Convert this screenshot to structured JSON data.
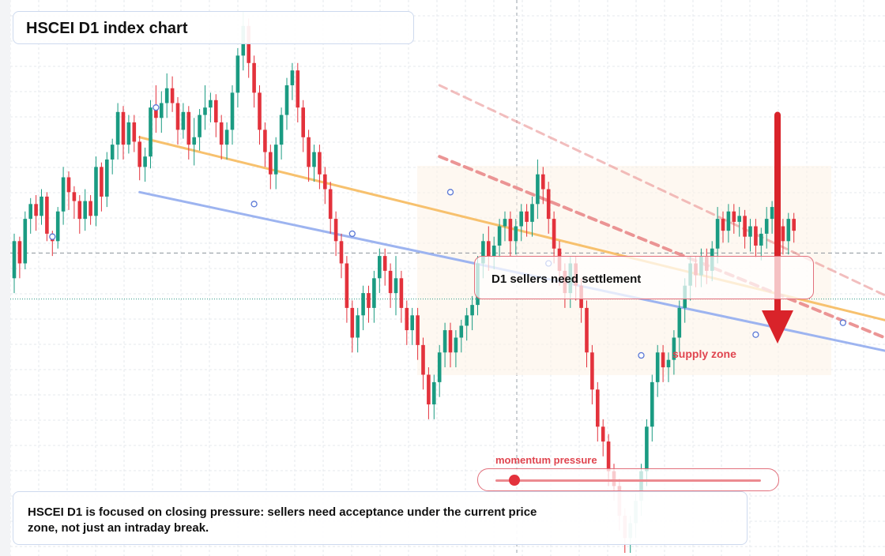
{
  "title": "HSCEI D1 index chart",
  "callout": "D1 sellers need settlement",
  "supply_label": "supply zone",
  "momentum": {
    "label": "momentum pressure",
    "level": 0.07
  },
  "note": "HSCEI D1 is focused on closing pressure: sellers need acceptance under the current price zone, not just an intraday break.",
  "colors": {
    "up": "#1a9b82",
    "down": "#e3323c",
    "trend_orange": "#f7c16e",
    "trend_blue": "#9db4f0",
    "resistance": "#e98a8a",
    "arrow": "#d9232a",
    "marker": "#5a78d6"
  },
  "chart_data": {
    "type": "candlestick",
    "title": "HSCEI D1 index chart",
    "grid": true,
    "y_scale": "price (no axis labels shown)",
    "ohlc": [
      [
        430,
        455,
        425,
        460,
        420
      ],
      [
        455,
        440,
        435,
        458,
        430
      ],
      [
        440,
        470,
        438,
        475,
        436
      ],
      [
        470,
        480,
        465,
        484,
        460
      ],
      [
        480,
        472,
        468,
        486,
        462
      ],
      [
        472,
        485,
        470,
        490,
        466
      ],
      [
        485,
        460,
        458,
        488,
        455
      ],
      [
        460,
        455,
        448,
        462,
        445
      ],
      [
        455,
        475,
        452,
        478,
        450
      ],
      [
        475,
        498,
        470,
        505,
        466
      ],
      [
        498,
        488,
        480,
        502,
        476
      ],
      [
        488,
        482,
        475,
        492,
        470
      ],
      [
        482,
        470,
        465,
        486,
        460
      ],
      [
        470,
        482,
        466,
        490,
        462
      ],
      [
        482,
        472,
        470,
        486,
        466
      ],
      [
        472,
        505,
        468,
        512,
        465
      ],
      [
        505,
        485,
        480,
        508,
        475
      ],
      [
        485,
        510,
        482,
        515,
        478
      ],
      [
        510,
        520,
        505,
        524,
        500
      ],
      [
        520,
        542,
        515,
        548,
        510
      ],
      [
        542,
        520,
        515,
        546,
        510
      ],
      [
        520,
        535,
        518,
        540,
        514
      ],
      [
        535,
        522,
        520,
        540,
        515
      ],
      [
        522,
        505,
        500,
        526,
        496
      ],
      [
        505,
        512,
        500,
        518,
        495
      ],
      [
        512,
        545,
        508,
        550,
        504
      ],
      [
        545,
        538,
        532,
        560,
        528
      ],
      [
        538,
        548,
        532,
        556,
        528
      ],
      [
        548,
        558,
        542,
        568,
        538
      ],
      [
        558,
        548,
        545,
        566,
        542
      ],
      [
        548,
        530,
        525,
        552,
        520
      ],
      [
        530,
        542,
        528,
        548,
        524
      ],
      [
        542,
        520,
        515,
        546,
        510
      ],
      [
        520,
        525,
        515,
        538,
        506
      ],
      [
        525,
        540,
        520,
        544,
        516
      ],
      [
        540,
        545,
        535,
        560,
        530
      ],
      [
        545,
        550,
        540,
        555,
        535
      ],
      [
        550,
        535,
        530,
        554,
        525
      ],
      [
        535,
        520,
        515,
        540,
        510
      ],
      [
        520,
        530,
        515,
        535,
        510
      ],
      [
        530,
        555,
        525,
        560,
        520
      ],
      [
        555,
        580,
        550,
        585,
        545
      ],
      [
        580,
        600,
        575,
        610,
        570
      ],
      [
        600,
        575,
        570,
        605,
        565
      ],
      [
        575,
        555,
        550,
        580,
        545
      ],
      [
        555,
        530,
        525,
        560,
        520
      ],
      [
        530,
        515,
        510,
        535,
        505
      ],
      [
        515,
        500,
        495,
        520,
        490
      ],
      [
        500,
        520,
        495,
        525,
        490
      ],
      [
        520,
        540,
        515,
        545,
        510
      ],
      [
        540,
        560,
        535,
        565,
        530
      ],
      [
        560,
        570,
        555,
        575,
        550
      ],
      [
        570,
        545,
        540,
        575,
        535
      ],
      [
        545,
        525,
        520,
        550,
        515
      ],
      [
        525,
        505,
        500,
        530,
        495
      ],
      [
        505,
        515,
        500,
        520,
        495
      ],
      [
        515,
        500,
        495,
        520,
        490
      ],
      [
        500,
        490,
        485,
        505,
        480
      ],
      [
        490,
        470,
        465,
        495,
        460
      ],
      [
        470,
        455,
        450,
        475,
        445
      ],
      [
        455,
        440,
        435,
        460,
        430
      ],
      [
        440,
        410,
        405,
        445,
        400
      ],
      [
        410,
        390,
        385,
        415,
        380
      ],
      [
        390,
        405,
        385,
        410,
        380
      ],
      [
        405,
        420,
        400,
        425,
        395
      ],
      [
        420,
        410,
        405,
        425,
        400
      ],
      [
        410,
        430,
        405,
        435,
        400
      ],
      [
        430,
        445,
        425,
        450,
        420
      ],
      [
        445,
        435,
        430,
        450,
        425
      ],
      [
        435,
        420,
        415,
        440,
        410
      ],
      [
        420,
        430,
        410,
        445,
        405
      ],
      [
        430,
        410,
        405,
        435,
        400
      ],
      [
        410,
        395,
        390,
        415,
        385
      ],
      [
        395,
        405,
        390,
        410,
        385
      ],
      [
        405,
        385,
        380,
        410,
        375
      ],
      [
        385,
        365,
        360,
        390,
        355
      ],
      [
        365,
        345,
        340,
        370,
        335
      ],
      [
        345,
        360,
        340,
        365,
        335
      ],
      [
        360,
        380,
        355,
        385,
        350
      ],
      [
        380,
        395,
        375,
        400,
        370
      ],
      [
        395,
        380,
        375,
        400,
        370
      ],
      [
        380,
        390,
        375,
        395,
        370
      ],
      [
        390,
        398,
        385,
        402,
        380
      ],
      [
        398,
        405,
        392,
        410,
        388
      ],
      [
        405,
        412,
        400,
        418,
        395
      ],
      [
        412,
        440,
        408,
        445,
        405
      ],
      [
        440,
        455,
        435,
        460,
        430
      ],
      [
        455,
        445,
        440,
        465,
        435
      ],
      [
        445,
        452,
        440,
        458,
        436
      ],
      [
        452,
        465,
        448,
        470,
        444
      ],
      [
        465,
        470,
        460,
        475,
        455
      ],
      [
        470,
        455,
        450,
        475,
        445
      ],
      [
        455,
        465,
        450,
        470,
        446
      ],
      [
        465,
        475,
        460,
        480,
        455
      ],
      [
        475,
        468,
        462,
        480,
        458
      ],
      [
        468,
        480,
        462,
        485,
        458
      ],
      [
        480,
        500,
        475,
        510,
        470
      ],
      [
        500,
        490,
        485,
        505,
        480
      ],
      [
        490,
        470,
        465,
        495,
        460
      ],
      [
        470,
        450,
        445,
        475,
        440
      ],
      [
        450,
        435,
        430,
        455,
        425
      ],
      [
        435,
        420,
        415,
        440,
        410
      ],
      [
        420,
        440,
        415,
        445,
        410
      ],
      [
        440,
        425,
        420,
        445,
        415
      ],
      [
        425,
        410,
        405,
        430,
        400
      ],
      [
        410,
        380,
        375,
        415,
        370
      ],
      [
        380,
        355,
        350,
        385,
        345
      ],
      [
        355,
        330,
        325,
        360,
        320
      ],
      [
        330,
        320,
        315,
        335,
        310
      ],
      [
        320,
        300,
        295,
        325,
        290
      ],
      [
        300,
        290,
        285,
        305,
        280
      ],
      [
        290,
        270,
        265,
        295,
        260
      ],
      [
        270,
        255,
        250,
        275,
        245
      ],
      [
        255,
        265,
        250,
        270,
        245
      ],
      [
        265,
        280,
        260,
        285,
        255
      ],
      [
        280,
        300,
        275,
        305,
        270
      ],
      [
        300,
        330,
        295,
        335,
        290
      ],
      [
        330,
        360,
        325,
        365,
        320
      ],
      [
        360,
        380,
        355,
        385,
        350
      ],
      [
        380,
        370,
        365,
        385,
        360
      ],
      [
        370,
        375,
        365,
        380,
        360
      ],
      [
        375,
        390,
        370,
        395,
        365
      ],
      [
        390,
        410,
        385,
        415,
        380
      ],
      [
        410,
        425,
        405,
        430,
        400
      ],
      [
        425,
        440,
        420,
        445,
        415
      ],
      [
        440,
        432,
        428,
        445,
        424
      ],
      [
        432,
        445,
        428,
        450,
        424
      ],
      [
        445,
        435,
        430,
        450,
        426
      ],
      [
        435,
        450,
        432,
        455,
        428
      ],
      [
        450,
        470,
        445,
        478,
        440
      ],
      [
        470,
        462,
        458,
        475,
        454
      ],
      [
        462,
        475,
        458,
        480,
        454
      ],
      [
        475,
        468,
        464,
        480,
        460
      ],
      [
        468,
        472,
        462,
        478,
        458
      ],
      [
        472,
        458,
        454,
        476,
        450
      ],
      [
        458,
        465,
        452,
        470,
        448
      ],
      [
        465,
        452,
        448,
        470,
        444
      ],
      [
        452,
        460,
        446,
        464,
        442
      ],
      [
        460,
        470,
        455,
        478,
        450
      ],
      [
        470,
        478,
        465,
        482,
        460
      ],
      [
        478,
        465,
        460,
        482,
        456
      ],
      [
        465,
        455,
        450,
        470,
        446
      ],
      [
        455,
        470,
        450,
        474,
        446
      ],
      [
        470,
        462,
        458,
        474,
        454
      ]
    ],
    "trendlines": [
      {
        "name": "orange trendline",
        "from": [
          23,
          525
        ],
        "to": [
          165,
          397
        ]
      },
      {
        "name": "blue trendline",
        "from": [
          23,
          488
        ],
        "to": [
          165,
          377
        ]
      },
      {
        "name": "red descending resistance",
        "from": [
          78,
          512
        ],
        "to": [
          165,
          382
        ]
      },
      {
        "name": "faint descending resistance",
        "from": [
          78,
          560
        ],
        "to": [
          160,
          418
        ]
      }
    ],
    "supply_zone": {
      "x_range": [
        78,
        165
      ],
      "y_range": [
        414,
        580
      ]
    },
    "reference_levels": [
      447,
      416
    ],
    "signal_arrow": {
      "direction": "down",
      "x": 140,
      "from": 540,
      "to": 386
    },
    "markers": [
      [
        7,
        458
      ],
      [
        26,
        545
      ],
      [
        44,
        480
      ],
      [
        62,
        460
      ],
      [
        80,
        488
      ],
      [
        98,
        440
      ],
      [
        115,
        378
      ],
      [
        136,
        392
      ],
      [
        152,
        400
      ]
    ]
  }
}
